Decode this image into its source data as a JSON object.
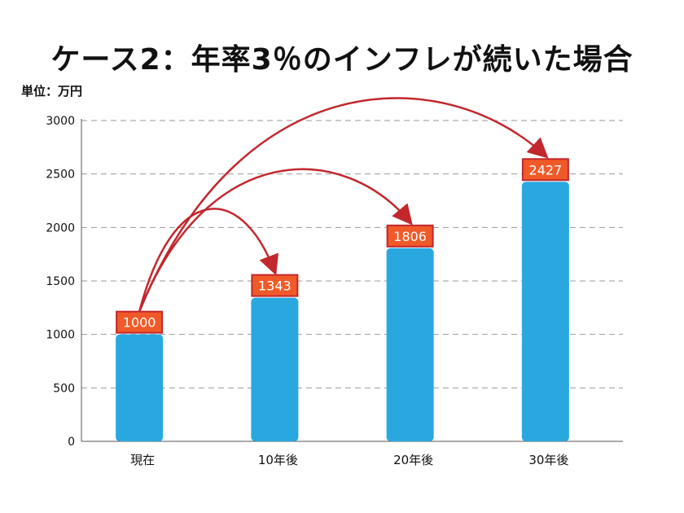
{
  "chart_data": {
    "type": "bar",
    "title": "ケース2：年率3％のインフレが続いた場合",
    "unit_label": "単位：万円",
    "categories": [
      "現在",
      "10年後",
      "20年後",
      "30年後"
    ],
    "values": [
      1000,
      1343,
      1806,
      2427
    ],
    "value_labels": [
      "1000",
      "1343",
      "1806",
      "2427"
    ],
    "ylim": [
      0,
      3000
    ],
    "yticks": [
      0,
      500,
      1000,
      1500,
      2000,
      2500,
      3000
    ],
    "ytick_labels": [
      "0",
      "500",
      "1000",
      "1500",
      "2000",
      "2500",
      "3000"
    ],
    "grid": true,
    "annotations": "arrows from 現在 bar to each later bar",
    "colors": {
      "bar": "#29a8e0",
      "label_bg": "#f05a28",
      "label_border": "#c1272d",
      "arrow": "#c1272d",
      "grid": "#999999"
    }
  }
}
